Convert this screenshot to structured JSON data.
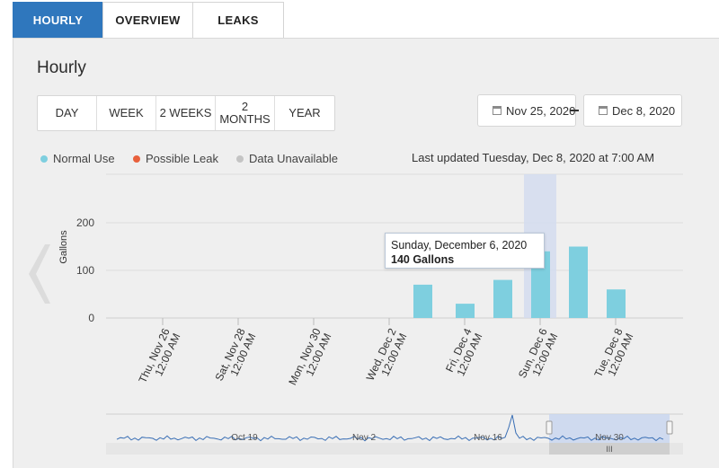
{
  "tabs": [
    {
      "label": "HOURLY",
      "active": true
    },
    {
      "label": "OVERVIEW",
      "active": false
    },
    {
      "label": "LEAKS",
      "active": false
    }
  ],
  "panel_title": "Hourly",
  "range_buttons": [
    "DAY",
    "WEEK",
    "2 WEEKS",
    "2 MONTHS",
    "YEAR"
  ],
  "date_from": "Nov 25, 2020",
  "date_to": "Dec 8, 2020",
  "legend": [
    {
      "label": "Normal Use",
      "color": "#7ecfdf"
    },
    {
      "label": "Possible Leak",
      "color": "#e8603c"
    },
    {
      "label": "Data Unavailable",
      "color": "#c4c4c4"
    }
  ],
  "last_updated": "Last updated Tuesday, Dec 8, 2020 at 7:00 AM",
  "tooltip": {
    "date": "Sunday, December 6, 2020",
    "value": "140 Gallons"
  },
  "icons": {
    "date_picker": "calendar-icon",
    "nav_left": "chevron-left-icon"
  },
  "chart_data": {
    "type": "bar",
    "ylabel": "Gallons",
    "ylim": [
      0,
      230
    ],
    "yticks": [
      0,
      100,
      200
    ],
    "color": "#7ecfdf",
    "x_ticks": [
      {
        "line1": "Thu, Nov 26",
        "line2": "12:00 AM"
      },
      {
        "line1": "Sat, Nov 28",
        "line2": "12:00 AM"
      },
      {
        "line1": "Mon, Nov 30",
        "line2": "12:00 AM"
      },
      {
        "line1": "Wed, Dec 2",
        "line2": "12:00 AM"
      },
      {
        "line1": "Fri, Dec 4",
        "line2": "12:00 AM"
      },
      {
        "line1": "Sun, Dec 6",
        "line2": "12:00 AM"
      },
      {
        "line1": "Tue, Dec 8",
        "line2": "12:00 AM"
      }
    ],
    "bars": [
      {
        "date": "Dec 3",
        "value": 70
      },
      {
        "date": "Dec 4",
        "value": 30
      },
      {
        "date": "Dec 5",
        "value": 80
      },
      {
        "date": "Dec 6",
        "value": 140,
        "highlighted": true
      },
      {
        "date": "Dec 7",
        "value": 150
      },
      {
        "date": "Dec 8",
        "value": 60
      }
    ],
    "navigator_labels": [
      "Oct 19",
      "Nov 2",
      "Nov 16",
      "Nov 30"
    ]
  }
}
